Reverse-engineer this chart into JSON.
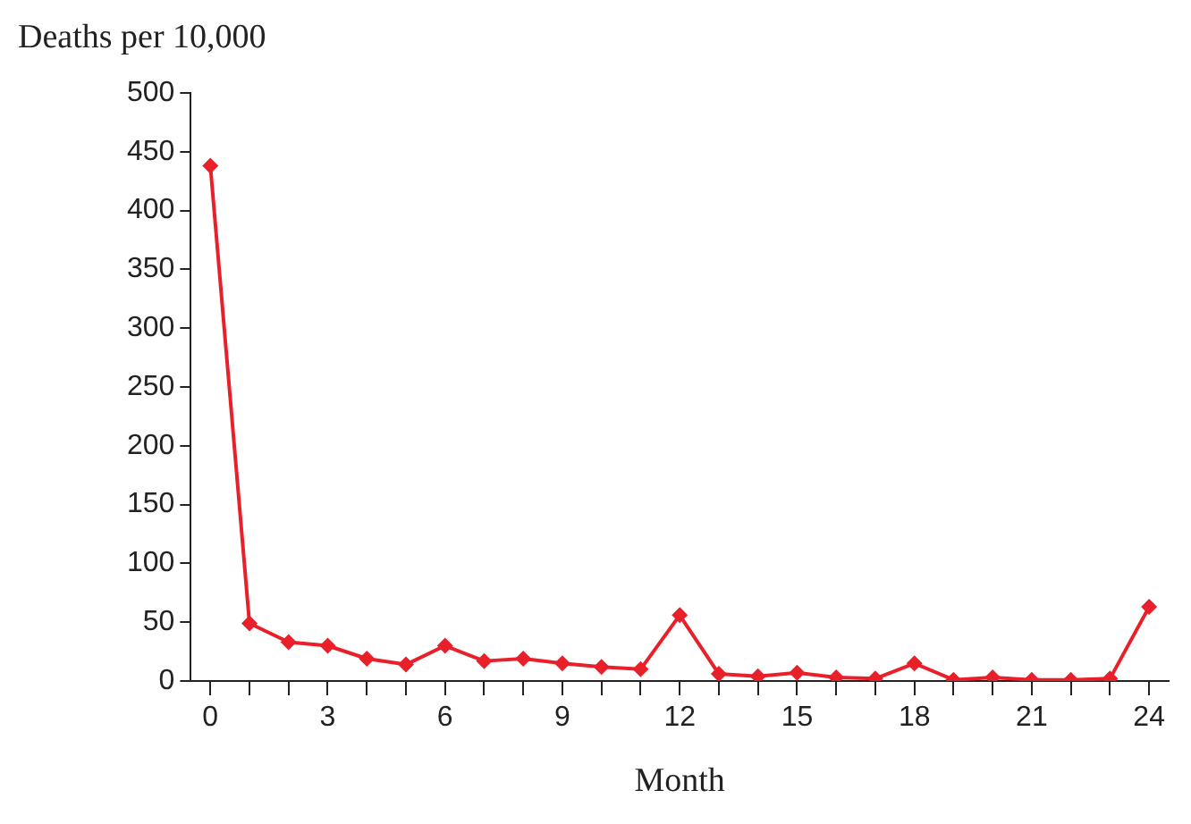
{
  "chart_data": {
    "type": "line",
    "xlabel": "Month",
    "ylabel": "Deaths per 10,000",
    "x": [
      0,
      1,
      2,
      3,
      4,
      5,
      6,
      7,
      8,
      9,
      10,
      11,
      12,
      13,
      14,
      15,
      16,
      17,
      18,
      19,
      20,
      21,
      22,
      23,
      24
    ],
    "series": [
      {
        "color": "#e8202a",
        "values": [
          438,
          49,
          33,
          30,
          19,
          14,
          30,
          17,
          19,
          15,
          12,
          10,
          56,
          6,
          4,
          7,
          3,
          2,
          15,
          1,
          3,
          1,
          1,
          2,
          63
        ]
      }
    ],
    "xlim": [
      -0.5,
      24.5
    ],
    "xticks": [
      0,
      {
        "value": 1,
        "label": null
      },
      {
        "value": 2,
        "label": null
      },
      3,
      {
        "value": 4,
        "label": null
      },
      {
        "value": 5,
        "label": null
      },
      6,
      {
        "value": 7,
        "label": null
      },
      {
        "value": 8,
        "label": null
      },
      9,
      {
        "value": 10,
        "label": null
      },
      {
        "value": 11,
        "label": null
      },
      12,
      {
        "value": 13,
        "label": null
      },
      {
        "value": 14,
        "label": null
      },
      15,
      {
        "value": 16,
        "label": null
      },
      {
        "value": 17,
        "label": null
      },
      18,
      {
        "value": 19,
        "label": null
      },
      {
        "value": 20,
        "label": null
      },
      21,
      {
        "value": 22,
        "label": null
      },
      {
        "value": 23,
        "label": null
      },
      24
    ],
    "ylim": [
      0,
      500
    ],
    "yticks": [
      0,
      50,
      100,
      150,
      200,
      250,
      300,
      350,
      400,
      450,
      500
    ],
    "grid": false,
    "legend": false,
    "marker": "diamond",
    "line_style": "solid"
  }
}
